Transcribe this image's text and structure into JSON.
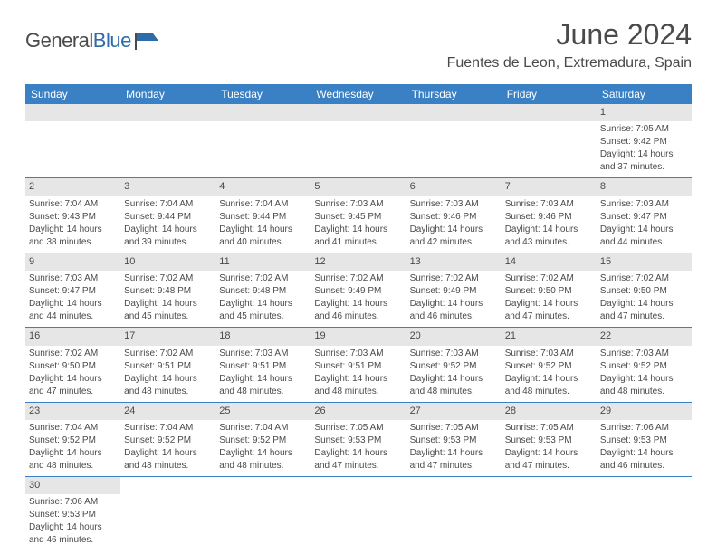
{
  "brand": {
    "part1": "General",
    "part2": "Blue"
  },
  "title": "June 2024",
  "location": "Fuentes de Leon, Extremadura, Spain",
  "colors": {
    "header_bg": "#3a80c4",
    "header_text": "#ffffff",
    "day_header_bg": "#e6e6e6",
    "cell_border": "#3a80c4",
    "text": "#4a4a4a",
    "brand_blue": "#2d6ca8"
  },
  "day_names": [
    "Sunday",
    "Monday",
    "Tuesday",
    "Wednesday",
    "Thursday",
    "Friday",
    "Saturday"
  ],
  "weeks": [
    [
      null,
      null,
      null,
      null,
      null,
      null,
      {
        "n": "1",
        "sunrise": "Sunrise: 7:05 AM",
        "sunset": "Sunset: 9:42 PM",
        "d1": "Daylight: 14 hours",
        "d2": "and 37 minutes."
      }
    ],
    [
      {
        "n": "2",
        "sunrise": "Sunrise: 7:04 AM",
        "sunset": "Sunset: 9:43 PM",
        "d1": "Daylight: 14 hours",
        "d2": "and 38 minutes."
      },
      {
        "n": "3",
        "sunrise": "Sunrise: 7:04 AM",
        "sunset": "Sunset: 9:44 PM",
        "d1": "Daylight: 14 hours",
        "d2": "and 39 minutes."
      },
      {
        "n": "4",
        "sunrise": "Sunrise: 7:04 AM",
        "sunset": "Sunset: 9:44 PM",
        "d1": "Daylight: 14 hours",
        "d2": "and 40 minutes."
      },
      {
        "n": "5",
        "sunrise": "Sunrise: 7:03 AM",
        "sunset": "Sunset: 9:45 PM",
        "d1": "Daylight: 14 hours",
        "d2": "and 41 minutes."
      },
      {
        "n": "6",
        "sunrise": "Sunrise: 7:03 AM",
        "sunset": "Sunset: 9:46 PM",
        "d1": "Daylight: 14 hours",
        "d2": "and 42 minutes."
      },
      {
        "n": "7",
        "sunrise": "Sunrise: 7:03 AM",
        "sunset": "Sunset: 9:46 PM",
        "d1": "Daylight: 14 hours",
        "d2": "and 43 minutes."
      },
      {
        "n": "8",
        "sunrise": "Sunrise: 7:03 AM",
        "sunset": "Sunset: 9:47 PM",
        "d1": "Daylight: 14 hours",
        "d2": "and 44 minutes."
      }
    ],
    [
      {
        "n": "9",
        "sunrise": "Sunrise: 7:03 AM",
        "sunset": "Sunset: 9:47 PM",
        "d1": "Daylight: 14 hours",
        "d2": "and 44 minutes."
      },
      {
        "n": "10",
        "sunrise": "Sunrise: 7:02 AM",
        "sunset": "Sunset: 9:48 PM",
        "d1": "Daylight: 14 hours",
        "d2": "and 45 minutes."
      },
      {
        "n": "11",
        "sunrise": "Sunrise: 7:02 AM",
        "sunset": "Sunset: 9:48 PM",
        "d1": "Daylight: 14 hours",
        "d2": "and 45 minutes."
      },
      {
        "n": "12",
        "sunrise": "Sunrise: 7:02 AM",
        "sunset": "Sunset: 9:49 PM",
        "d1": "Daylight: 14 hours",
        "d2": "and 46 minutes."
      },
      {
        "n": "13",
        "sunrise": "Sunrise: 7:02 AM",
        "sunset": "Sunset: 9:49 PM",
        "d1": "Daylight: 14 hours",
        "d2": "and 46 minutes."
      },
      {
        "n": "14",
        "sunrise": "Sunrise: 7:02 AM",
        "sunset": "Sunset: 9:50 PM",
        "d1": "Daylight: 14 hours",
        "d2": "and 47 minutes."
      },
      {
        "n": "15",
        "sunrise": "Sunrise: 7:02 AM",
        "sunset": "Sunset: 9:50 PM",
        "d1": "Daylight: 14 hours",
        "d2": "and 47 minutes."
      }
    ],
    [
      {
        "n": "16",
        "sunrise": "Sunrise: 7:02 AM",
        "sunset": "Sunset: 9:50 PM",
        "d1": "Daylight: 14 hours",
        "d2": "and 47 minutes."
      },
      {
        "n": "17",
        "sunrise": "Sunrise: 7:02 AM",
        "sunset": "Sunset: 9:51 PM",
        "d1": "Daylight: 14 hours",
        "d2": "and 48 minutes."
      },
      {
        "n": "18",
        "sunrise": "Sunrise: 7:03 AM",
        "sunset": "Sunset: 9:51 PM",
        "d1": "Daylight: 14 hours",
        "d2": "and 48 minutes."
      },
      {
        "n": "19",
        "sunrise": "Sunrise: 7:03 AM",
        "sunset": "Sunset: 9:51 PM",
        "d1": "Daylight: 14 hours",
        "d2": "and 48 minutes."
      },
      {
        "n": "20",
        "sunrise": "Sunrise: 7:03 AM",
        "sunset": "Sunset: 9:52 PM",
        "d1": "Daylight: 14 hours",
        "d2": "and 48 minutes."
      },
      {
        "n": "21",
        "sunrise": "Sunrise: 7:03 AM",
        "sunset": "Sunset: 9:52 PM",
        "d1": "Daylight: 14 hours",
        "d2": "and 48 minutes."
      },
      {
        "n": "22",
        "sunrise": "Sunrise: 7:03 AM",
        "sunset": "Sunset: 9:52 PM",
        "d1": "Daylight: 14 hours",
        "d2": "and 48 minutes."
      }
    ],
    [
      {
        "n": "23",
        "sunrise": "Sunrise: 7:04 AM",
        "sunset": "Sunset: 9:52 PM",
        "d1": "Daylight: 14 hours",
        "d2": "and 48 minutes."
      },
      {
        "n": "24",
        "sunrise": "Sunrise: 7:04 AM",
        "sunset": "Sunset: 9:52 PM",
        "d1": "Daylight: 14 hours",
        "d2": "and 48 minutes."
      },
      {
        "n": "25",
        "sunrise": "Sunrise: 7:04 AM",
        "sunset": "Sunset: 9:52 PM",
        "d1": "Daylight: 14 hours",
        "d2": "and 48 minutes."
      },
      {
        "n": "26",
        "sunrise": "Sunrise: 7:05 AM",
        "sunset": "Sunset: 9:53 PM",
        "d1": "Daylight: 14 hours",
        "d2": "and 47 minutes."
      },
      {
        "n": "27",
        "sunrise": "Sunrise: 7:05 AM",
        "sunset": "Sunset: 9:53 PM",
        "d1": "Daylight: 14 hours",
        "d2": "and 47 minutes."
      },
      {
        "n": "28",
        "sunrise": "Sunrise: 7:05 AM",
        "sunset": "Sunset: 9:53 PM",
        "d1": "Daylight: 14 hours",
        "d2": "and 47 minutes."
      },
      {
        "n": "29",
        "sunrise": "Sunrise: 7:06 AM",
        "sunset": "Sunset: 9:53 PM",
        "d1": "Daylight: 14 hours",
        "d2": "and 46 minutes."
      }
    ],
    [
      {
        "n": "30",
        "sunrise": "Sunrise: 7:06 AM",
        "sunset": "Sunset: 9:53 PM",
        "d1": "Daylight: 14 hours",
        "d2": "and 46 minutes."
      },
      null,
      null,
      null,
      null,
      null,
      null
    ]
  ]
}
